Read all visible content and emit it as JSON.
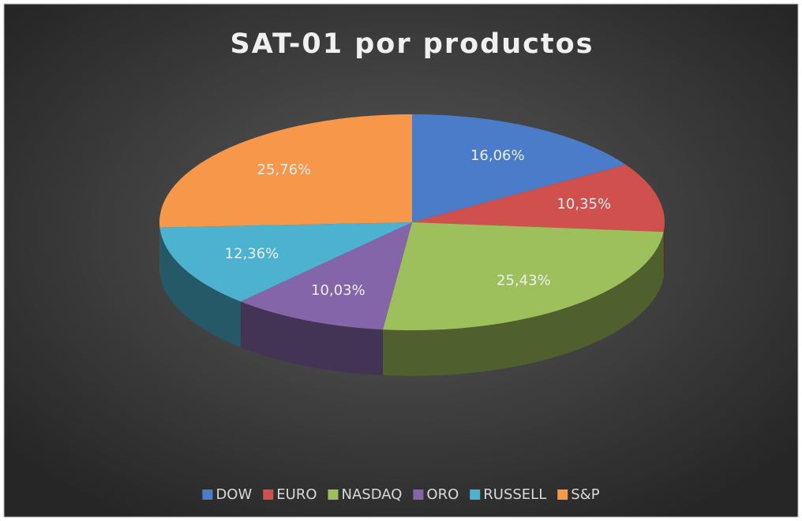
{
  "chart_data": {
    "type": "pie",
    "title": "SAT-01 por productos",
    "categories": [
      "DOW",
      "EURO",
      "NASDAQ",
      "ORO",
      "RUSSELL",
      "S&P"
    ],
    "values": [
      16.06,
      10.35,
      25.43,
      10.03,
      12.36,
      25.76
    ],
    "value_labels": [
      "16,06%",
      "10,35%",
      "25,43%",
      "10,03%",
      "12,36%",
      "25,76%"
    ],
    "colors": [
      "#4a7cc9",
      "#d0504e",
      "#9dc05c",
      "#8565aa",
      "#4cb2cf",
      "#f7974a"
    ],
    "legend": "bottom"
  }
}
